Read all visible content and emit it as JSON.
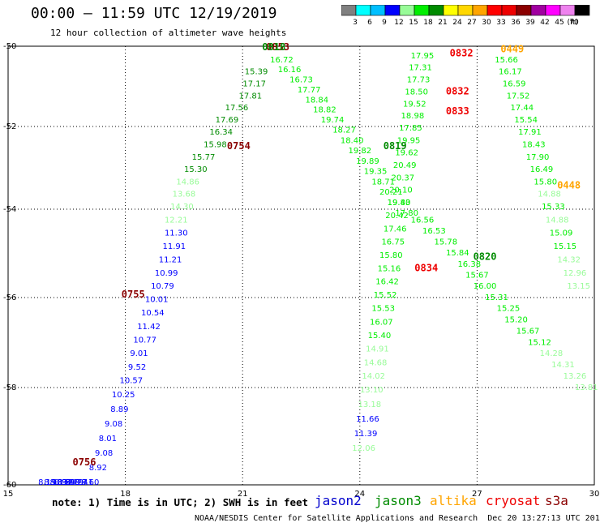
{
  "header": {
    "title": "00:00 – 11:59 UTC 12/19/2019",
    "subtitle": "12 hour collection of altimeter wave heights"
  },
  "legend": {
    "unit": "(ft)",
    "bins": [
      {
        "label": "3",
        "color": "#808080"
      },
      {
        "label": "6",
        "color": "#00ffff"
      },
      {
        "label": "9",
        "color": "#00bfff"
      },
      {
        "label": "12",
        "color": "#0000ff"
      },
      {
        "label": "15",
        "color": "#98fb98"
      },
      {
        "label": "18",
        "color": "#00ee00"
      },
      {
        "label": "21",
        "color": "#008b00"
      },
      {
        "label": "24",
        "color": "#ffff00"
      },
      {
        "label": "27",
        "color": "#ffd700"
      },
      {
        "label": "30",
        "color": "#ffa500"
      },
      {
        "label": "33",
        "color": "#ff0000"
      },
      {
        "label": "36",
        "color": "#ee0000"
      },
      {
        "label": "39",
        "color": "#8b0000"
      },
      {
        "label": "42",
        "color": "#a000a0"
      },
      {
        "label": "45",
        "color": "#ff00ff"
      },
      {
        "label": "70",
        "color": "#ee82ee"
      },
      {
        "label": "",
        "color": "#000000"
      }
    ]
  },
  "map": {
    "x_ticks": [
      "15",
      "18",
      "21",
      "24",
      "27",
      "30"
    ],
    "y_ticks": [
      "-50",
      "-52",
      "-54",
      "-56",
      "-58",
      "-60"
    ],
    "time_labels": [
      {
        "text": "0853",
        "color": "#8b0000",
        "lon": 21.9,
        "lat": -50.1
      },
      {
        "text": "0754",
        "color": "#8b0000",
        "lon": 20.9,
        "lat": -52.55
      },
      {
        "text": "0755",
        "color": "#8b0000",
        "lon": 18.2,
        "lat": -56.0
      },
      {
        "text": "0756",
        "color": "#8b0000",
        "lon": 16.95,
        "lat": -59.6
      },
      {
        "text": "0818",
        "color": "#008b00",
        "lon": 21.8,
        "lat": -50.1
      },
      {
        "text": "0819",
        "color": "#008b00",
        "lon": 24.9,
        "lat": -52.55
      },
      {
        "text": "0820",
        "color": "#008b00",
        "lon": 27.2,
        "lat": -55.15
      },
      {
        "text": "0832",
        "color": "#ee0000",
        "lon": 26.6,
        "lat": -50.25
      },
      {
        "text": "0832",
        "color": "#ee0000",
        "lon": 26.5,
        "lat": -51.2
      },
      {
        "text": "0833",
        "color": "#ee0000",
        "lon": 26.5,
        "lat": -51.7
      },
      {
        "text": "0834",
        "color": "#ee0000",
        "lon": 25.7,
        "lat": -55.4
      },
      {
        "text": "0449",
        "color": "#ffa500",
        "lon": 27.9,
        "lat": -50.15
      },
      {
        "text": "0448",
        "color": "#ffa500",
        "lon": 29.35,
        "lat": -53.5
      }
    ],
    "tracks": [
      {
        "color": "#008b00",
        "points": [
          {
            "lon": 21.35,
            "lat": -50.7,
            "v": "15.39"
          },
          {
            "lon": 21.3,
            "lat": -51.0,
            "v": "17.17"
          },
          {
            "lon": 21.2,
            "lat": -51.3,
            "v": "17.81"
          },
          {
            "lon": 20.85,
            "lat": -51.6,
            "v": "17.56"
          },
          {
            "lon": 20.6,
            "lat": -51.9,
            "v": "17.69"
          },
          {
            "lon": 20.45,
            "lat": -52.2,
            "v": "16.34"
          },
          {
            "lon": 20.3,
            "lat": -52.5,
            "v": "15.98"
          },
          {
            "lon": 20.0,
            "lat": -52.8,
            "v": "15.77"
          },
          {
            "lon": 19.8,
            "lat": -53.1,
            "v": "15.30"
          }
        ]
      },
      {
        "color": "#98fb98",
        "points": [
          {
            "lon": 19.6,
            "lat": -53.4,
            "v": "14.86"
          },
          {
            "lon": 19.5,
            "lat": -53.7,
            "v": "13.68"
          },
          {
            "lon": 19.45,
            "lat": -54.0,
            "v": "14.30"
          },
          {
            "lon": 19.3,
            "lat": -54.3,
            "v": "12.21"
          }
        ]
      },
      {
        "color": "#0000ff",
        "points": [
          {
            "lon": 19.3,
            "lat": -54.6,
            "v": "11.30"
          },
          {
            "lon": 19.25,
            "lat": -54.9,
            "v": "11.91"
          },
          {
            "lon": 19.15,
            "lat": -55.2,
            "v": "11.21"
          },
          {
            "lon": 19.05,
            "lat": -55.5,
            "v": "10.99"
          },
          {
            "lon": 18.95,
            "lat": -55.8,
            "v": "10.79"
          },
          {
            "lon": 18.8,
            "lat": -56.1,
            "v": "10.01"
          },
          {
            "lon": 18.7,
            "lat": -56.4,
            "v": "10.54"
          },
          {
            "lon": 18.6,
            "lat": -56.7,
            "v": "11.42"
          },
          {
            "lon": 18.5,
            "lat": -57.0,
            "v": "10.77"
          },
          {
            "lon": 18.35,
            "lat": -57.3,
            "v": "9.01"
          },
          {
            "lon": 18.3,
            "lat": -57.6,
            "v": "9.52"
          },
          {
            "lon": 18.15,
            "lat": -57.9,
            "v": "10.57"
          },
          {
            "lon": 17.95,
            "lat": -58.2,
            "v": "10.25"
          },
          {
            "lon": 17.85,
            "lat": -58.5,
            "v": "8.89"
          },
          {
            "lon": 17.7,
            "lat": -58.8,
            "v": "9.08"
          },
          {
            "lon": 17.55,
            "lat": -59.1,
            "v": "8.01"
          },
          {
            "lon": 17.45,
            "lat": -59.4,
            "v": "9.08"
          },
          {
            "lon": 17.3,
            "lat": -59.7,
            "v": "8.92"
          },
          {
            "lon": 17.1,
            "lat": -60.0,
            "v": "8.60"
          },
          {
            "lon": 16.95,
            "lat": -60.3,
            "v": "9.41"
          },
          {
            "lon": 16.8,
            "lat": -60.6,
            "v": "9.27"
          },
          {
            "lon": 16.7,
            "lat": -60.9,
            "v": "8.19"
          },
          {
            "lon": 16.6,
            "lat": -61.2,
            "v": "9.18"
          },
          {
            "lon": 16.5,
            "lat": -61.5,
            "v": "8.59"
          },
          {
            "lon": 16.4,
            "lat": -61.8,
            "v": "8.34"
          },
          {
            "lon": 16.3,
            "lat": -62.1,
            "v": "8.83"
          },
          {
            "lon": 16.15,
            "lat": -62.4,
            "v": "8.33"
          },
          {
            "lon": 16.0,
            "lat": -62.7,
            "v": "8.19"
          }
        ]
      },
      {
        "color": "#00ee00",
        "points": [
          {
            "lon": 22.0,
            "lat": -50.4,
            "v": "16.72"
          },
          {
            "lon": 22.2,
            "lat": -50.65,
            "v": "16.16"
          },
          {
            "lon": 22.5,
            "lat": -50.9,
            "v": "16.73"
          },
          {
            "lon": 22.7,
            "lat": -51.15,
            "v": "17.77"
          },
          {
            "lon": 22.9,
            "lat": -51.4,
            "v": "18.84"
          },
          {
            "lon": 23.1,
            "lat": -51.65,
            "v": "18.82"
          },
          {
            "lon": 23.3,
            "lat": -51.9,
            "v": "19.74"
          },
          {
            "lon": 23.6,
            "lat": -52.15,
            "v": "18.27"
          },
          {
            "lon": 23.8,
            "lat": -52.4,
            "v": "18.40"
          },
          {
            "lon": 24.0,
            "lat": -52.65,
            "v": "19.82"
          },
          {
            "lon": 24.2,
            "lat": -52.9,
            "v": "19.89"
          },
          {
            "lon": 24.4,
            "lat": -53.15,
            "v": "19.35"
          },
          {
            "lon": 24.6,
            "lat": -53.4,
            "v": "18.71"
          },
          {
            "lon": 24.8,
            "lat": -53.65,
            "v": "20.21"
          },
          {
            "lon": 25.0,
            "lat": -53.9,
            "v": "19.83"
          },
          {
            "lon": 25.2,
            "lat": -54.15,
            "v": "17.80"
          }
        ]
      },
      {
        "color": "#00ee00",
        "points": [
          {
            "lon": 25.6,
            "lat": -50.3,
            "v": "17.95"
          },
          {
            "lon": 25.55,
            "lat": -50.6,
            "v": "17.31"
          },
          {
            "lon": 25.5,
            "lat": -50.9,
            "v": "17.73"
          },
          {
            "lon": 25.45,
            "lat": -51.2,
            "v": "18.50"
          },
          {
            "lon": 25.4,
            "lat": -51.5,
            "v": "19.52"
          },
          {
            "lon": 25.35,
            "lat": -51.8,
            "v": "18.98"
          },
          {
            "lon": 25.3,
            "lat": -52.1,
            "v": "17.85"
          },
          {
            "lon": 25.25,
            "lat": -52.4,
            "v": "19.95"
          },
          {
            "lon": 25.2,
            "lat": -52.7,
            "v": "19.62"
          },
          {
            "lon": 25.15,
            "lat": -53.0,
            "v": "20.49"
          },
          {
            "lon": 25.1,
            "lat": -53.3,
            "v": "20.37"
          },
          {
            "lon": 25.05,
            "lat": -53.6,
            "v": "20.10"
          },
          {
            "lon": 25.0,
            "lat": -53.9,
            "v": "19.40"
          },
          {
            "lon": 24.95,
            "lat": -54.2,
            "v": "20.42"
          },
          {
            "lon": 24.9,
            "lat": -54.5,
            "v": "17.46"
          },
          {
            "lon": 24.85,
            "lat": -54.8,
            "v": "16.75"
          },
          {
            "lon": 24.8,
            "lat": -55.1,
            "v": "15.80"
          },
          {
            "lon": 24.75,
            "lat": -55.4,
            "v": "15.16"
          },
          {
            "lon": 24.7,
            "lat": -55.7,
            "v": "16.42"
          },
          {
            "lon": 24.65,
            "lat": -56.0,
            "v": "15.52"
          },
          {
            "lon": 24.6,
            "lat": -56.3,
            "v": "15.53"
          },
          {
            "lon": 24.55,
            "lat": -56.6,
            "v": "16.07"
          },
          {
            "lon": 24.5,
            "lat": -56.9,
            "v": "15.40"
          }
        ]
      },
      {
        "color": "#98fb98",
        "points": [
          {
            "lon": 24.45,
            "lat": -57.2,
            "v": "14.91"
          },
          {
            "lon": 24.4,
            "lat": -57.5,
            "v": "14.68"
          },
          {
            "lon": 24.35,
            "lat": -57.8,
            "v": "14.02"
          },
          {
            "lon": 24.3,
            "lat": -58.1,
            "v": "13.10"
          },
          {
            "lon": 24.25,
            "lat": -58.4,
            "v": "13.18"
          }
        ]
      },
      {
        "color": "#0000ff",
        "points": [
          {
            "lon": 24.2,
            "lat": -58.7,
            "v": "11.66"
          },
          {
            "lon": 24.15,
            "lat": -59.0,
            "v": "11.39"
          }
        ]
      },
      {
        "color": "#98fb98",
        "points": [
          {
            "lon": 24.1,
            "lat": -59.3,
            "v": "12.06"
          }
        ]
      },
      {
        "color": "#00ee00",
        "points": [
          {
            "lon": 25.6,
            "lat": -54.3,
            "v": "16.56"
          },
          {
            "lon": 25.9,
            "lat": -54.55,
            "v": "16.53"
          },
          {
            "lon": 26.2,
            "lat": -54.8,
            "v": "15.78"
          },
          {
            "lon": 26.5,
            "lat": -55.05,
            "v": "15.84"
          },
          {
            "lon": 26.8,
            "lat": -55.3,
            "v": "16.38"
          },
          {
            "lon": 27.0,
            "lat": -55.55,
            "v": "15.67"
          },
          {
            "lon": 27.2,
            "lat": -55.8,
            "v": "16.00"
          },
          {
            "lon": 27.5,
            "lat": -56.05,
            "v": "15.31"
          },
          {
            "lon": 27.8,
            "lat": -56.3,
            "v": "15.25"
          },
          {
            "lon": 28.0,
            "lat": -56.55,
            "v": "15.20"
          },
          {
            "lon": 28.3,
            "lat": -56.8,
            "v": "15.67"
          },
          {
            "lon": 28.6,
            "lat": -57.05,
            "v": "15.12"
          }
        ]
      },
      {
        "color": "#98fb98",
        "points": [
          {
            "lon": 28.9,
            "lat": -57.3,
            "v": "14.28"
          },
          {
            "lon": 29.2,
            "lat": -57.55,
            "v": "14.31"
          },
          {
            "lon": 29.5,
            "lat": -57.8,
            "v": "13.26"
          },
          {
            "lon": 29.8,
            "lat": -58.05,
            "v": "13.81"
          }
        ]
      },
      {
        "color": "#00ee00",
        "points": [
          {
            "lon": 27.75,
            "lat": -50.4,
            "v": "15.66"
          },
          {
            "lon": 27.85,
            "lat": -50.7,
            "v": "16.17"
          },
          {
            "lon": 27.95,
            "lat": -51.0,
            "v": "16.59"
          },
          {
            "lon": 28.05,
            "lat": -51.3,
            "v": "17.52"
          },
          {
            "lon": 28.15,
            "lat": -51.6,
            "v": "17.44"
          },
          {
            "lon": 28.25,
            "lat": -51.9,
            "v": "15.54"
          },
          {
            "lon": 28.35,
            "lat": -52.2,
            "v": "17.91"
          },
          {
            "lon": 28.45,
            "lat": -52.5,
            "v": "18.43"
          },
          {
            "lon": 28.55,
            "lat": -52.8,
            "v": "17.90"
          },
          {
            "lon": 28.65,
            "lat": -53.1,
            "v": "16.49"
          },
          {
            "lon": 28.75,
            "lat": -53.4,
            "v": "15.80"
          }
        ]
      },
      {
        "color": "#98fb98",
        "points": [
          {
            "lon": 28.85,
            "lat": -53.7,
            "v": "14.88"
          }
        ]
      },
      {
        "color": "#00ee00",
        "points": [
          {
            "lon": 28.95,
            "lat": -54.0,
            "v": "15.33"
          }
        ]
      },
      {
        "color": "#98fb98",
        "points": [
          {
            "lon": 29.05,
            "lat": -54.3,
            "v": "14.88"
          }
        ]
      },
      {
        "color": "#00ee00",
        "points": [
          {
            "lon": 29.15,
            "lat": -54.6,
            "v": "15.09"
          },
          {
            "lon": 29.25,
            "lat": -54.9,
            "v": "15.15"
          }
        ]
      },
      {
        "color": "#98fb98",
        "points": [
          {
            "lon": 29.35,
            "lat": -55.2,
            "v": "14.32"
          },
          {
            "lon": 29.5,
            "lat": -55.5,
            "v": "12.96"
          },
          {
            "lon": 29.6,
            "lat": -55.8,
            "v": "13.15"
          }
        ]
      }
    ]
  },
  "footer": {
    "note": "note: 1) Time is in UTC; 2) SWH is in feet",
    "satellites": [
      {
        "name": "jason2",
        "color": "#0000cd"
      },
      {
        "name": "jason3",
        "color": "#008b00"
      },
      {
        "name": "altika",
        "color": "#ffa500"
      },
      {
        "name": "cryosat",
        "color": "#ee0000"
      },
      {
        "name": "s3a",
        "color": "#8b0000"
      }
    ],
    "credit": "NOAA/NESDIS Center for Satellite Applications and Research",
    "timestamp": "Dec 20 13:27:13 UTC 2019"
  }
}
